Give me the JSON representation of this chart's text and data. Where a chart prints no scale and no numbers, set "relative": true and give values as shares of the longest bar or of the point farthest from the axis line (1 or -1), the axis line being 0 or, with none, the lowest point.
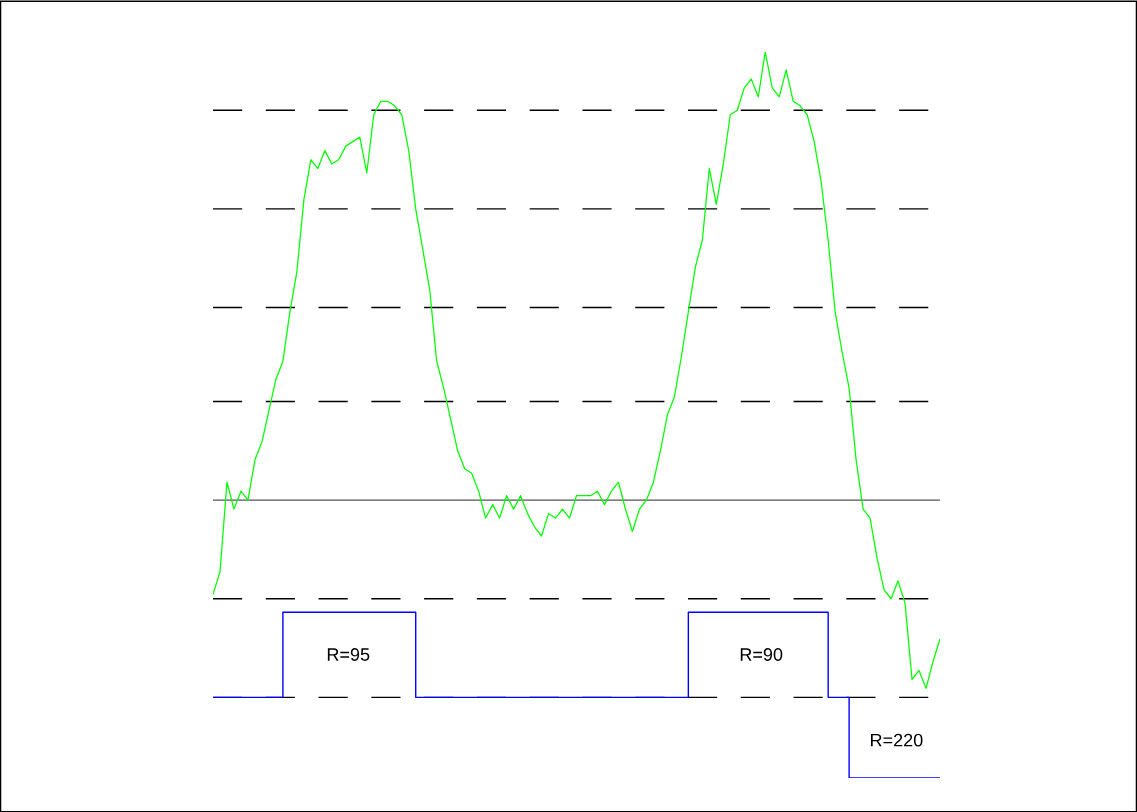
{
  "chart_data": {
    "type": "line",
    "relative": true,
    "legend": false,
    "tick_labels": false,
    "categories": [
      null,
      null,
      null,
      null,
      null,
      null,
      null,
      null,
      null,
      null,
      null,
      null,
      null,
      null,
      null,
      null,
      null,
      null,
      null,
      null,
      null,
      null,
      null,
      null,
      null,
      null,
      null,
      null,
      null,
      null,
      null,
      null,
      null,
      null,
      null,
      null,
      null,
      null,
      null,
      null,
      null,
      null,
      null,
      null,
      null,
      null,
      null,
      null,
      null,
      null,
      null,
      null,
      null,
      null,
      null,
      null,
      null,
      null,
      null,
      null,
      null,
      null,
      null,
      null,
      null,
      null,
      null,
      null,
      null,
      null,
      null,
      null,
      null,
      null,
      null,
      null,
      null,
      null,
      null,
      null,
      null,
      null,
      null,
      null,
      null,
      null,
      null,
      null,
      null,
      null,
      null,
      null,
      null,
      null,
      null,
      null,
      null,
      null,
      null,
      null,
      null,
      null,
      null,
      null,
      null
    ],
    "series": [
      {
        "color": "#00ff00",
        "values": [
          -0.21,
          -0.16,
          0.04,
          -0.02,
          0.02,
          0,
          0.09,
          0.13,
          0.2,
          0.27,
          0.31,
          0.42,
          0.51,
          0.67,
          0.76,
          0.74,
          0.78,
          0.75,
          0.76,
          0.79,
          0.8,
          0.81,
          0.73,
          0.86,
          0.89,
          0.89,
          0.88,
          0.86,
          0.78,
          0.65,
          0.56,
          0.47,
          0.31,
          0.25,
          0.18,
          0.11,
          0.07,
          0.06,
          0.02,
          -0.04,
          -0.01,
          -0.04,
          0.01,
          -0.02,
          0.01,
          -0.03,
          -0.06,
          -0.08,
          -0.03,
          -0.04,
          -0.02,
          -0.04,
          0.01,
          0.01,
          0.01,
          0.02,
          -0.01,
          0.02,
          0.04,
          -0.02,
          -0.07,
          -0.02,
          0,
          0.04,
          0.11,
          0.19,
          0.23,
          0.32,
          0.42,
          0.52,
          0.58,
          0.74,
          0.66,
          0.75,
          0.86,
          0.87,
          0.92,
          0.94,
          0.9,
          1,
          0.92,
          0.9,
          0.96,
          0.89,
          0.88,
          0.86,
          0.8,
          0.71,
          0.58,
          0.42,
          0.33,
          0.25,
          0.09,
          -0.02,
          -0.04,
          -0.13,
          -0.2,
          -0.22,
          -0.18,
          -0.23,
          -0.4,
          -0.38,
          -0.42,
          -0.36,
          -0.31
        ]
      },
      {
        "type": "step",
        "color": "#0000ff",
        "values": [
          -0.44,
          -0.44,
          -0.44,
          -0.44,
          -0.44,
          -0.44,
          -0.44,
          -0.44,
          -0.44,
          -0.44,
          -0.25,
          -0.25,
          -0.25,
          -0.25,
          -0.25,
          -0.25,
          -0.25,
          -0.25,
          -0.25,
          -0.25,
          -0.25,
          -0.25,
          -0.25,
          -0.25,
          -0.25,
          -0.25,
          -0.25,
          -0.25,
          -0.25,
          -0.44,
          -0.44,
          -0.44,
          -0.44,
          -0.44,
          -0.44,
          -0.44,
          -0.44,
          -0.44,
          -0.44,
          -0.44,
          -0.44,
          -0.44,
          -0.44,
          -0.44,
          -0.44,
          -0.44,
          -0.44,
          -0.44,
          -0.44,
          -0.44,
          -0.44,
          -0.44,
          -0.44,
          -0.44,
          -0.44,
          -0.44,
          -0.44,
          -0.44,
          -0.44,
          -0.44,
          -0.44,
          -0.44,
          -0.44,
          -0.44,
          -0.44,
          -0.44,
          -0.44,
          -0.44,
          -0.25,
          -0.25,
          -0.25,
          -0.25,
          -0.25,
          -0.25,
          -0.25,
          -0.25,
          -0.25,
          -0.25,
          -0.25,
          -0.25,
          -0.25,
          -0.25,
          -0.25,
          -0.25,
          -0.25,
          -0.25,
          -0.25,
          -0.25,
          -0.44,
          -0.44,
          -0.44,
          -0.62,
          -0.62,
          -0.62,
          -0.62,
          -0.62,
          -0.62,
          -0.62,
          -0.62,
          -0.62,
          -0.62,
          -0.62,
          -0.62,
          -0.62,
          -0.62
        ]
      }
    ],
    "ref_lines": [
      {
        "axis": "y",
        "value": 0.87,
        "color": "#000000",
        "line_style": "dashed"
      },
      {
        "axis": "y",
        "value": 0.65,
        "color": "#000000",
        "line_style": "dashed"
      },
      {
        "axis": "y",
        "value": 0.43,
        "color": "#000000",
        "line_style": "dashed"
      },
      {
        "axis": "y",
        "value": 0.22,
        "color": "#000000",
        "line_style": "dashed"
      },
      {
        "axis": "y",
        "value": 0,
        "color": "#555555",
        "line_style": "solid"
      },
      {
        "axis": "y",
        "value": -0.22,
        "color": "#000000",
        "line_style": "dashed"
      },
      {
        "axis": "y",
        "value": -0.44,
        "color": "#000000",
        "line_style": "dashed"
      }
    ],
    "annotations": [
      "R=95",
      "R=90",
      "R=220"
    ]
  }
}
